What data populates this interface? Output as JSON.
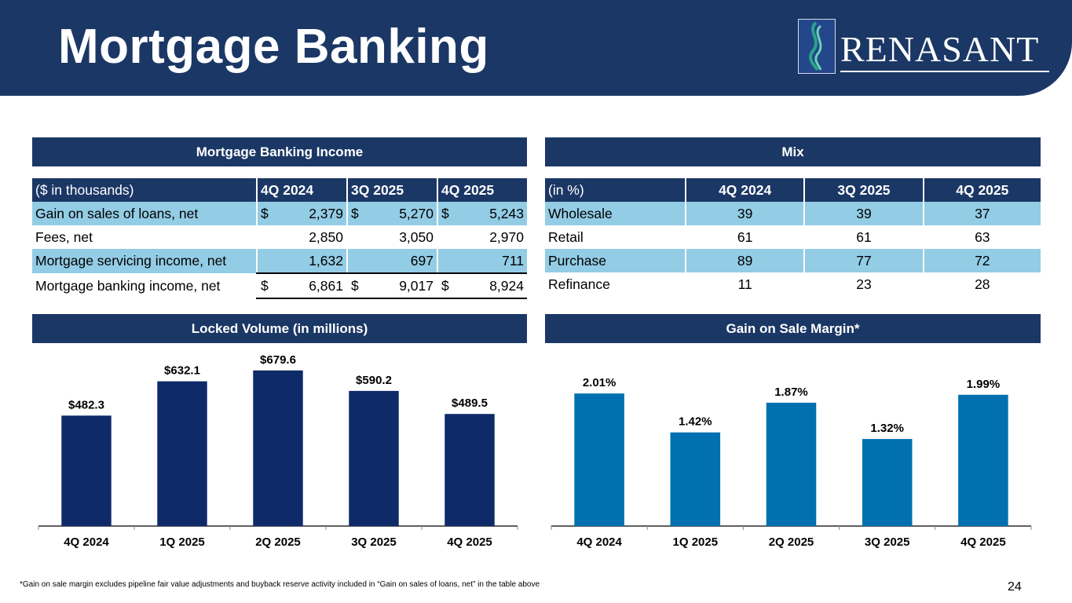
{
  "header": {
    "title": "Mortgage Banking",
    "logo_text": "RENASANT",
    "logo_icon": "renasant-swoosh-logo"
  },
  "income_section": {
    "title": "Mortgage Banking Income",
    "table": {
      "columns": [
        "($ in thousands)",
        "4Q 2024",
        "3Q 2025",
        "4Q 2025"
      ],
      "rows": [
        {
          "label": "Gain on sales of loans, net",
          "cells": [
            {
              "sym": "$",
              "val": "2,379"
            },
            {
              "sym": "$",
              "val": "5,270"
            },
            {
              "sym": "$",
              "val": "5,243"
            }
          ]
        },
        {
          "label": "Fees, net",
          "cells": [
            {
              "sym": "",
              "val": "2,850"
            },
            {
              "sym": "",
              "val": "3,050"
            },
            {
              "sym": "",
              "val": "2,970"
            }
          ]
        },
        {
          "label": "Mortgage servicing income, net",
          "cells": [
            {
              "sym": "",
              "val": "1,632"
            },
            {
              "sym": "",
              "val": "697"
            },
            {
              "sym": "",
              "val": "711"
            }
          ]
        },
        {
          "label": "Mortgage banking income, net",
          "cells": [
            {
              "sym": "$",
              "val": "6,861"
            },
            {
              "sym": "$",
              "val": "9,017"
            },
            {
              "sym": "$",
              "val": "8,924"
            }
          ]
        }
      ]
    }
  },
  "mix_section": {
    "title": "Mix",
    "table": {
      "columns": [
        "(in %)",
        "4Q 2024",
        "3Q 2025",
        "4Q 2025"
      ],
      "rows": [
        {
          "label": "Wholesale",
          "values": [
            "39",
            "39",
            "37"
          ]
        },
        {
          "label": "Retail",
          "values": [
            "61",
            "61",
            "63"
          ]
        },
        {
          "label": "Purchase",
          "values": [
            "89",
            "77",
            "72"
          ]
        },
        {
          "label": "Refinance",
          "values": [
            "11",
            "23",
            "28"
          ]
        }
      ]
    }
  },
  "colors": {
    "navy": "#1b3765",
    "table_shade": "#93cce5",
    "locked_bar": "#0f2a68",
    "margin_bar": "#0070b0"
  },
  "chart_data": [
    {
      "type": "bar",
      "title": "Locked Volume (in millions)",
      "categories": [
        "4Q 2024",
        "1Q 2025",
        "2Q 2025",
        "3Q 2025",
        "4Q 2025"
      ],
      "values": [
        482.3,
        632.1,
        679.6,
        590.2,
        489.5
      ],
      "labels": [
        "$482.3",
        "$632.1",
        "$679.6",
        "$590.2",
        "$489.5"
      ],
      "xlabel": "",
      "ylabel": "",
      "ylim": [
        0,
        720
      ],
      "grid": false
    },
    {
      "type": "bar",
      "title": "Gain on Sale Margin*",
      "categories": [
        "4Q 2024",
        "1Q 2025",
        "2Q 2025",
        "3Q 2025",
        "4Q 2025"
      ],
      "values": [
        2.01,
        1.42,
        1.87,
        1.32,
        1.99
      ],
      "labels": [
        "2.01%",
        "1.42%",
        "1.87%",
        "1.32%",
        "1.99%"
      ],
      "xlabel": "",
      "ylabel": "",
      "ylim": [
        0,
        2.5
      ],
      "grid": false
    }
  ],
  "footnote": "*Gain on sale margin excludes pipeline fair value adjustments and buyback reserve activity included in “Gain on sales of loans, net” in the table above",
  "page_number": "24"
}
